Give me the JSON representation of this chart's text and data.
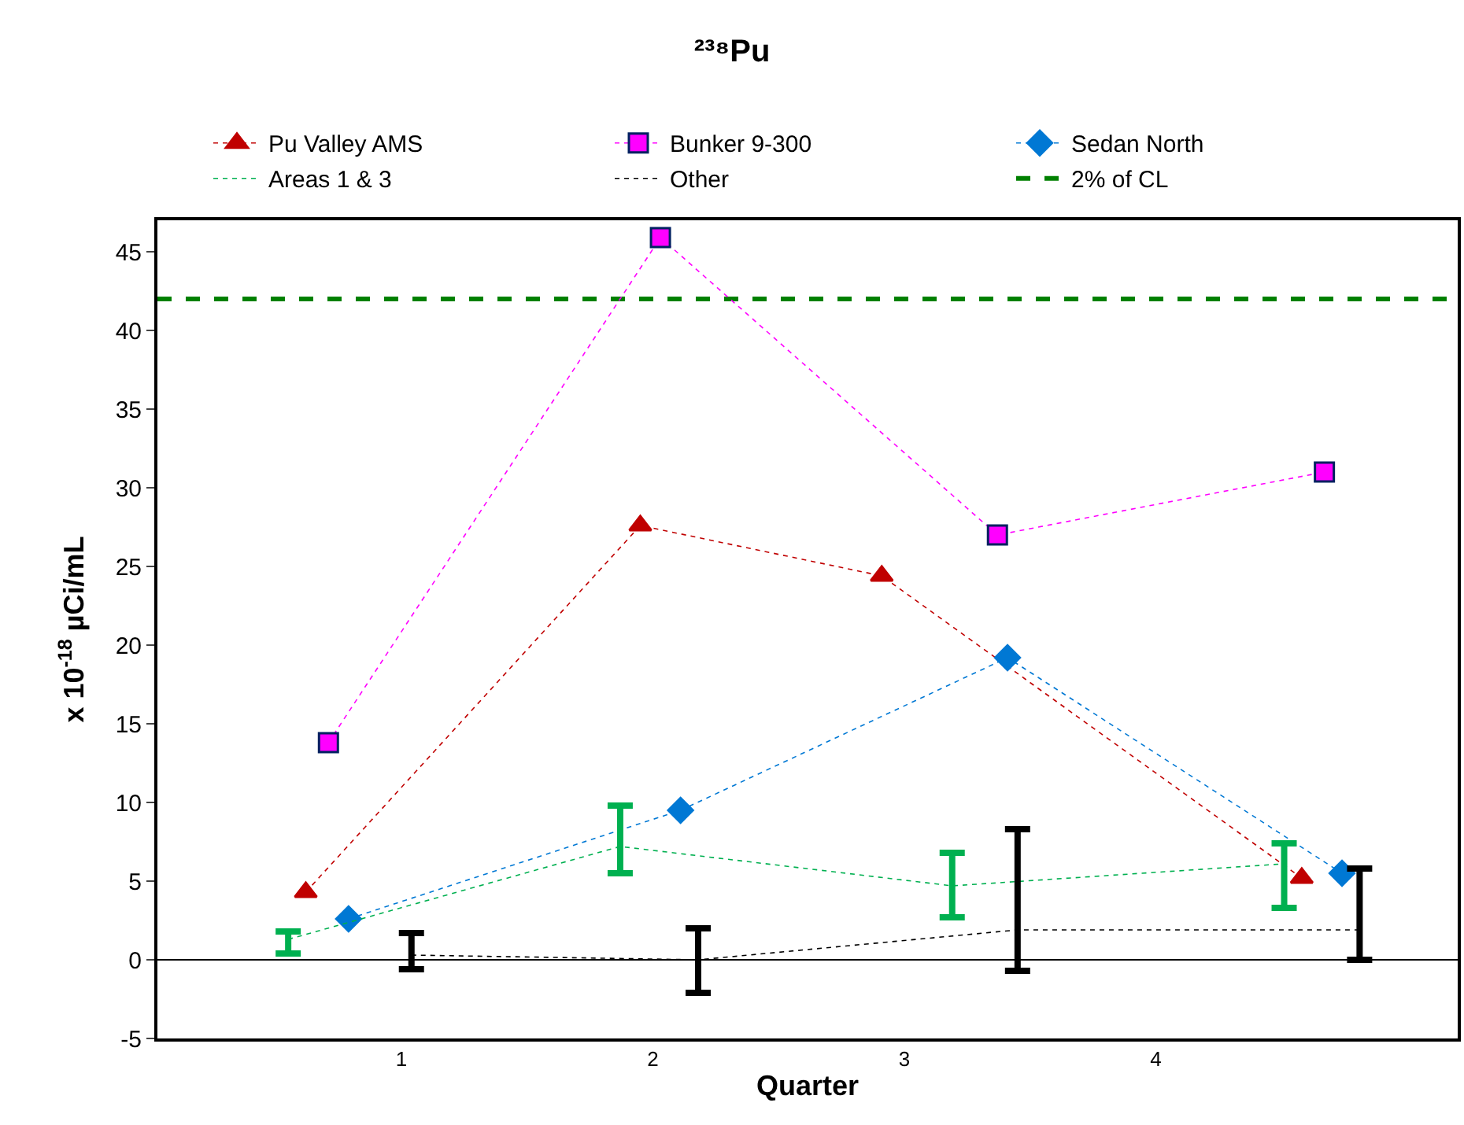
{
  "chart_data": {
    "type": "line",
    "title": "²³⁸Pu",
    "xlabel": "Quarter",
    "ylabel": "x 10$^{-18}$ µCi/mL",
    "xlim": [
      0.03,
      5.2
    ],
    "xticks": [
      1,
      2,
      3,
      4
    ],
    "ylim": [
      -5,
      47
    ],
    "yticks": [
      -5,
      0,
      5,
      10,
      15,
      20,
      25,
      30,
      35,
      40,
      45
    ],
    "grid": false,
    "legend": "top",
    "line_style": "dotted",
    "series": [
      {
        "name": "Pu Valley AMS",
        "color": "#c00000",
        "marker": "triangle",
        "x": [
          0.62,
          1.95,
          2.91,
          4.58
        ],
        "values": [
          4.3,
          27.6,
          24.4,
          5.2
        ]
      },
      {
        "name": "Bunker 9-300",
        "color": "#ff00ff",
        "marker": "square",
        "x": [
          0.71,
          2.03,
          3.37,
          4.67
        ],
        "values": [
          13.8,
          45.9,
          27.0,
          31.0
        ]
      },
      {
        "name": "Sedan North",
        "color": "#0078d4",
        "marker": "diamond",
        "x": [
          0.79,
          2.11,
          3.41,
          4.74
        ],
        "values": [
          2.6,
          9.5,
          19.2,
          5.5
        ]
      },
      {
        "name": "Areas 1 & 3",
        "color": "#00b050",
        "marker": "none",
        "x": [
          0.55,
          1.87,
          3.19,
          4.51
        ],
        "values": [
          1.3,
          7.2,
          4.7,
          6.1
        ],
        "errors": [
          [
            0.4,
            1.8
          ],
          [
            5.5,
            9.8
          ],
          [
            2.7,
            6.8
          ],
          [
            3.3,
            7.4
          ]
        ]
      },
      {
        "name": "Other",
        "color": "#000000",
        "marker": "none",
        "x": [
          1.04,
          2.18,
          3.45,
          4.81
        ],
        "values": [
          0.3,
          0.0,
          1.9,
          1.9
        ],
        "errors": [
          [
            -0.6,
            1.7
          ],
          [
            -2.1,
            2.0
          ],
          [
            -0.7,
            8.3
          ],
          [
            0.0,
            5.8
          ]
        ]
      }
    ],
    "ref_lines": [
      {
        "axis": "y",
        "value": 42,
        "label": "2% of CL",
        "color": "#008000",
        "line_style": "dashed"
      },
      {
        "axis": "y",
        "value": 0,
        "color": "#000000",
        "line_style": "solid"
      }
    ]
  }
}
